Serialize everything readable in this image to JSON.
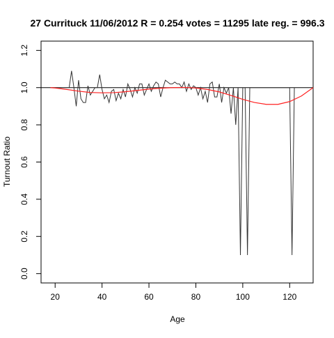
{
  "chart_data": {
    "type": "line",
    "title": "27 Currituck 11/06/2012 R = 0.254 votes = 11295 late reg. = 996.3",
    "xlabel": "Age",
    "ylabel": "Turnout Ratio",
    "xlim": [
      14,
      130
    ],
    "ylim": [
      -0.05,
      1.25
    ],
    "xticks": [
      20,
      40,
      60,
      80,
      100,
      120
    ],
    "yticks": [
      0.0,
      0.2,
      0.4,
      0.6,
      0.8,
      1.0,
      1.2
    ],
    "ytick_labels": [
      "0.0",
      "0.2",
      "0.4",
      "0.6",
      "0.8",
      "1.0",
      "1.2"
    ],
    "grid": false,
    "reference_line": {
      "y": 1.0,
      "color": "#000000"
    },
    "series": [
      {
        "color": "#333333",
        "x": [
          18,
          19,
          20,
          21,
          22,
          23,
          24,
          25,
          26,
          27,
          28,
          29,
          30,
          31,
          32,
          33,
          34,
          35,
          36,
          37,
          38,
          39,
          40,
          41,
          42,
          43,
          44,
          45,
          46,
          47,
          48,
          49,
          50,
          51,
          52,
          53,
          54,
          55,
          56,
          57,
          58,
          59,
          60,
          61,
          62,
          63,
          64,
          65,
          66,
          67,
          68,
          69,
          70,
          71,
          72,
          73,
          74,
          75,
          76,
          77,
          78,
          79,
          80,
          81,
          82,
          83,
          84,
          85,
          86,
          87,
          88,
          89,
          90,
          91,
          92,
          93,
          94,
          95,
          96,
          97,
          98,
          99,
          100,
          101,
          102,
          103,
          104,
          105,
          106,
          107,
          120,
          121,
          122
        ],
        "y": [
          1.0,
          1.0,
          1.0,
          1.0,
          1.0,
          1.0,
          1.0,
          1.0,
          1.0,
          1.09,
          1.0,
          0.9,
          1.04,
          0.94,
          0.92,
          0.92,
          1.01,
          0.96,
          0.98,
          1.0,
          1.0,
          1.07,
          0.99,
          0.94,
          0.96,
          0.92,
          0.98,
          0.99,
          0.93,
          0.97,
          0.94,
          0.99,
          0.95,
          1.02,
          0.99,
          0.95,
          1.0,
          0.97,
          1.02,
          1.02,
          0.96,
          0.99,
          1.02,
          0.98,
          1.01,
          1.03,
          1.02,
          0.95,
          1.0,
          1.04,
          1.03,
          1.02,
          1.02,
          1.03,
          1.02,
          1.02,
          1.0,
          1.03,
          0.98,
          1.02,
          0.99,
          1.01,
          1.0,
          0.96,
          1.0,
          0.94,
          0.98,
          0.92,
          1.02,
          1.03,
          0.95,
          0.95,
          1.02,
          0.92,
          1.0,
          0.97,
          1.0,
          0.86,
          1.0,
          0.8,
          1.0,
          0.1,
          1.0,
          1.0,
          0.1,
          1.0,
          1.0,
          1.0,
          1.0,
          1.0,
          1.0,
          0.1,
          1.0
        ]
      },
      {
        "color": "#ff2020",
        "x": [
          18,
          20,
          25,
          30,
          35,
          40,
          45,
          50,
          55,
          60,
          65,
          70,
          75,
          80,
          85,
          90,
          95,
          100,
          105,
          110,
          115,
          120,
          125,
          130
        ],
        "y": [
          1.0,
          0.998,
          0.99,
          0.981,
          0.974,
          0.972,
          0.973,
          0.978,
          0.985,
          0.992,
          0.997,
          1.0,
          1.001,
          0.998,
          0.99,
          0.977,
          0.958,
          0.937,
          0.92,
          0.91,
          0.91,
          0.925,
          0.955,
          1.0
        ]
      }
    ]
  }
}
